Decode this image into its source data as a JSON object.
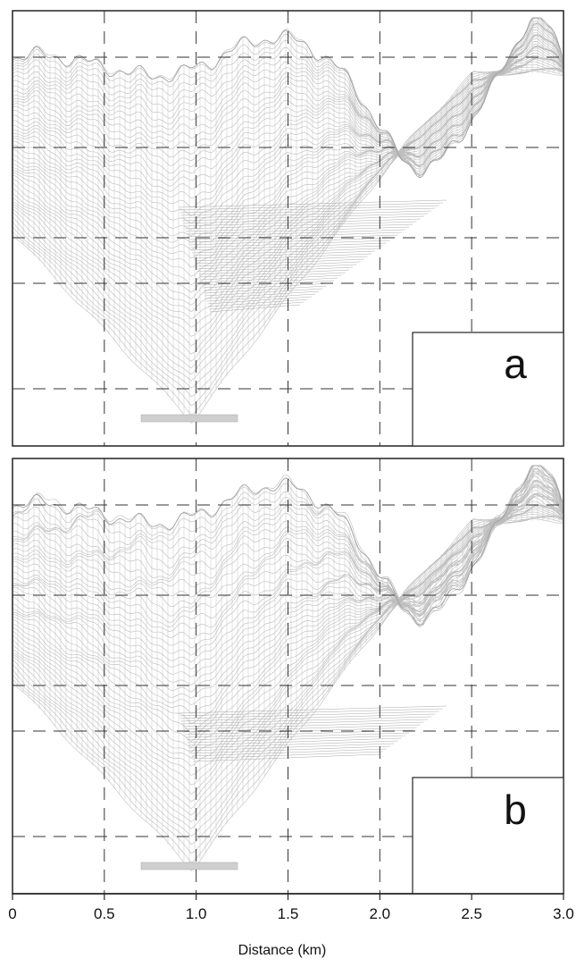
{
  "figure": {
    "panels": [
      {
        "label": "a"
      },
      {
        "label": "b"
      }
    ],
    "x_axis": {
      "label": "Distance (km)",
      "ticks": [
        "0",
        "0.5",
        "1.0",
        "1.5",
        "2.0",
        "2.5",
        "3.0"
      ],
      "range": [
        0,
        3.0
      ]
    },
    "colors": {
      "mesh": "#bdbdbd",
      "mesh_dense": "#a8a8a8",
      "frame": "#222222",
      "dashed_grid": "#333333"
    }
  }
}
